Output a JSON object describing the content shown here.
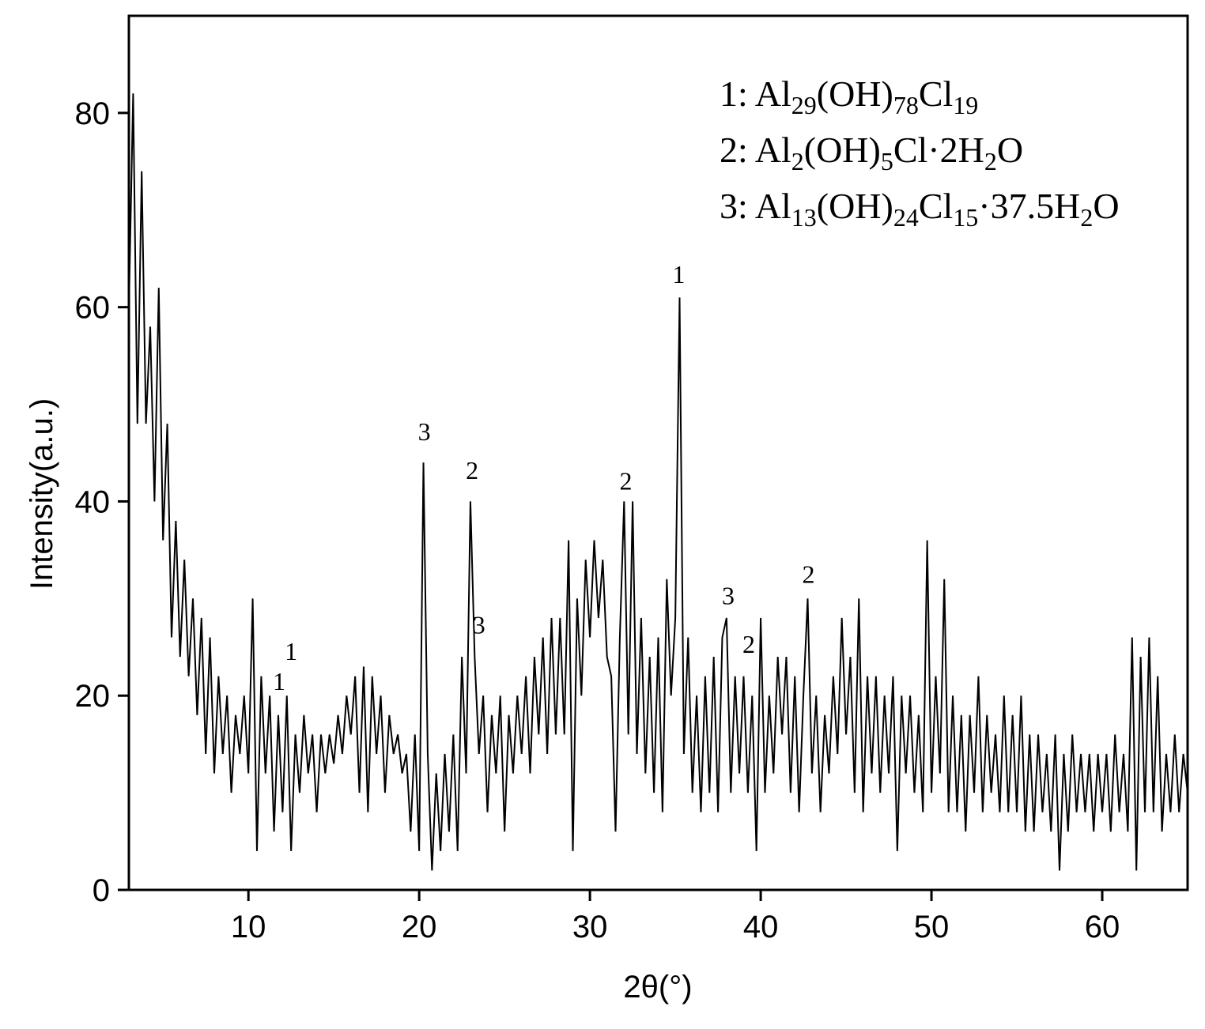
{
  "chart_data": {
    "type": "line",
    "x_label": "2θ(°)",
    "y_label": "Intensity(a.u.)",
    "xlim": [
      3,
      65
    ],
    "ylim": [
      0,
      90
    ],
    "xticks": [
      10,
      20,
      30,
      40,
      50,
      60
    ],
    "yticks": [
      0,
      20,
      40,
      60,
      80
    ],
    "series": [
      {
        "color": "#000000",
        "x": [
          3,
          3.25,
          3.5,
          3.75,
          4,
          4.25,
          4.5,
          4.75,
          5,
          5.25,
          5.5,
          5.75,
          6,
          6.25,
          6.5,
          6.75,
          7,
          7.25,
          7.5,
          7.75,
          8,
          8.25,
          8.5,
          8.75,
          9,
          9.25,
          9.5,
          9.75,
          10,
          10.25,
          10.5,
          10.75,
          11,
          11.25,
          11.5,
          11.75,
          12,
          12.25,
          12.5,
          12.75,
          13,
          13.25,
          13.5,
          13.75,
          14,
          14.25,
          14.5,
          14.75,
          15,
          15.25,
          15.5,
          15.75,
          16,
          16.25,
          16.5,
          16.75,
          17,
          17.25,
          17.5,
          17.75,
          18,
          18.25,
          18.5,
          18.75,
          19,
          19.25,
          19.5,
          19.75,
          20,
          20.25,
          20.5,
          20.75,
          21,
          21.25,
          21.5,
          21.75,
          22,
          22.25,
          22.5,
          22.75,
          23,
          23.25,
          23.5,
          23.75,
          24,
          24.25,
          24.5,
          24.75,
          25,
          25.25,
          25.5,
          25.75,
          26,
          26.25,
          26.5,
          26.75,
          27,
          27.25,
          27.5,
          27.75,
          28,
          28.25,
          28.5,
          28.75,
          29,
          29.25,
          29.5,
          29.75,
          30,
          30.25,
          30.5,
          30.75,
          31,
          31.25,
          31.5,
          31.75,
          32,
          32.25,
          32.5,
          32.75,
          33,
          33.25,
          33.5,
          33.75,
          34,
          34.25,
          34.5,
          34.75,
          35,
          35.25,
          35.5,
          35.75,
          36,
          36.25,
          36.5,
          36.75,
          37,
          37.25,
          37.5,
          37.75,
          38,
          38.25,
          38.5,
          38.75,
          39,
          39.25,
          39.5,
          39.75,
          40,
          40.25,
          40.5,
          40.75,
          41,
          41.25,
          41.5,
          41.75,
          42,
          42.25,
          42.5,
          42.75,
          43,
          43.25,
          43.5,
          43.75,
          44,
          44.25,
          44.5,
          44.75,
          45,
          45.25,
          45.5,
          45.75,
          46,
          46.25,
          46.5,
          46.75,
          47,
          47.25,
          47.5,
          47.75,
          48,
          48.25,
          48.5,
          48.75,
          49,
          49.25,
          49.5,
          49.75,
          50,
          50.25,
          50.5,
          50.75,
          51,
          51.25,
          51.5,
          51.75,
          52,
          52.25,
          52.5,
          52.75,
          53,
          53.25,
          53.5,
          53.75,
          54,
          54.25,
          54.5,
          54.75,
          55,
          55.25,
          55.5,
          55.75,
          56,
          56.25,
          56.5,
          56.75,
          57,
          57.25,
          57.5,
          57.75,
          58,
          58.25,
          58.5,
          58.75,
          59,
          59.25,
          59.5,
          59.75,
          60,
          60.25,
          60.5,
          60.75,
          61,
          61.25,
          61.5,
          61.75,
          62,
          62.25,
          62.5,
          62.75,
          63,
          63.25,
          63.5,
          63.75,
          64,
          64.25,
          64.5,
          64.75,
          65
        ],
        "values": [
          60,
          82,
          48,
          74,
          48,
          58,
          40,
          62,
          36,
          48,
          26,
          38,
          24,
          34,
          22,
          30,
          18,
          28,
          14,
          26,
          12,
          22,
          14,
          20,
          10,
          18,
          14,
          20,
          12,
          30,
          4,
          22,
          12,
          20,
          6,
          18,
          8,
          20,
          4,
          16,
          10,
          18,
          12,
          16,
          8,
          16,
          12,
          16,
          13,
          18,
          14,
          20,
          16,
          22,
          10,
          23,
          8,
          22,
          14,
          20,
          10,
          18,
          14,
          16,
          12,
          14,
          6,
          16,
          4,
          44,
          14,
          2,
          12,
          4,
          14,
          6,
          16,
          4,
          24,
          12,
          40,
          24,
          14,
          20,
          8,
          18,
          12,
          20,
          6,
          18,
          12,
          20,
          14,
          22,
          12,
          24,
          16,
          26,
          14,
          28,
          16,
          28,
          16,
          36,
          4,
          30,
          20,
          34,
          26,
          36,
          28,
          34,
          24,
          22,
          6,
          26,
          40,
          16,
          40,
          14,
          28,
          12,
          24,
          10,
          26,
          8,
          32,
          20,
          28,
          61,
          14,
          26,
          10,
          20,
          8,
          22,
          10,
          24,
          8,
          26,
          28,
          10,
          22,
          12,
          22,
          10,
          20,
          4,
          28,
          10,
          20,
          12,
          24,
          16,
          24,
          10,
          22,
          8,
          20,
          30,
          12,
          20,
          8,
          18,
          12,
          22,
          14,
          28,
          16,
          24,
          10,
          30,
          8,
          22,
          12,
          22,
          10,
          20,
          12,
          22,
          4,
          20,
          12,
          20,
          10,
          18,
          8,
          36,
          10,
          22,
          12,
          32,
          8,
          20,
          8,
          18,
          6,
          18,
          10,
          22,
          8,
          18,
          10,
          16,
          8,
          20,
          8,
          18,
          8,
          20,
          6,
          16,
          6,
          16,
          8,
          14,
          6,
          16,
          2,
          14,
          6,
          16,
          8,
          14,
          8,
          14,
          6,
          14,
          8,
          14,
          6,
          16,
          8,
          14,
          6,
          26,
          2,
          24,
          8,
          26,
          8,
          22,
          6,
          14,
          8,
          16,
          8,
          14,
          10
        ]
      }
    ],
    "annotations": [
      {
        "text": "3",
        "x": 20.3,
        "y": 46.3
      },
      {
        "text": "2",
        "x": 23.1,
        "y": 42.3
      },
      {
        "text": "3",
        "x": 23.5,
        "y": 26.4
      },
      {
        "text": "2",
        "x": 32.1,
        "y": 41.2
      },
      {
        "text": "1",
        "x": 35.2,
        "y": 62.5
      },
      {
        "text": "3",
        "x": 38.1,
        "y": 29.4
      },
      {
        "text": "2",
        "x": 39.3,
        "y": 24.4
      },
      {
        "text": "2",
        "x": 42.8,
        "y": 31.6
      },
      {
        "text": "1",
        "x": 12.5,
        "y": 23.7
      },
      {
        "text": "1",
        "x": 11.8,
        "y": 20.6
      }
    ],
    "legend": [
      [
        "1: Al",
        "29",
        "(OH)",
        "78",
        "Cl",
        "19"
      ],
      [
        "2: Al",
        "2",
        "(OH)",
        "5",
        "Cl·2H",
        "2",
        "O"
      ],
      [
        "3: Al",
        "13",
        "(OH)",
        "24",
        "Cl",
        "15",
        "·37.5H",
        "2",
        "O"
      ]
    ]
  }
}
